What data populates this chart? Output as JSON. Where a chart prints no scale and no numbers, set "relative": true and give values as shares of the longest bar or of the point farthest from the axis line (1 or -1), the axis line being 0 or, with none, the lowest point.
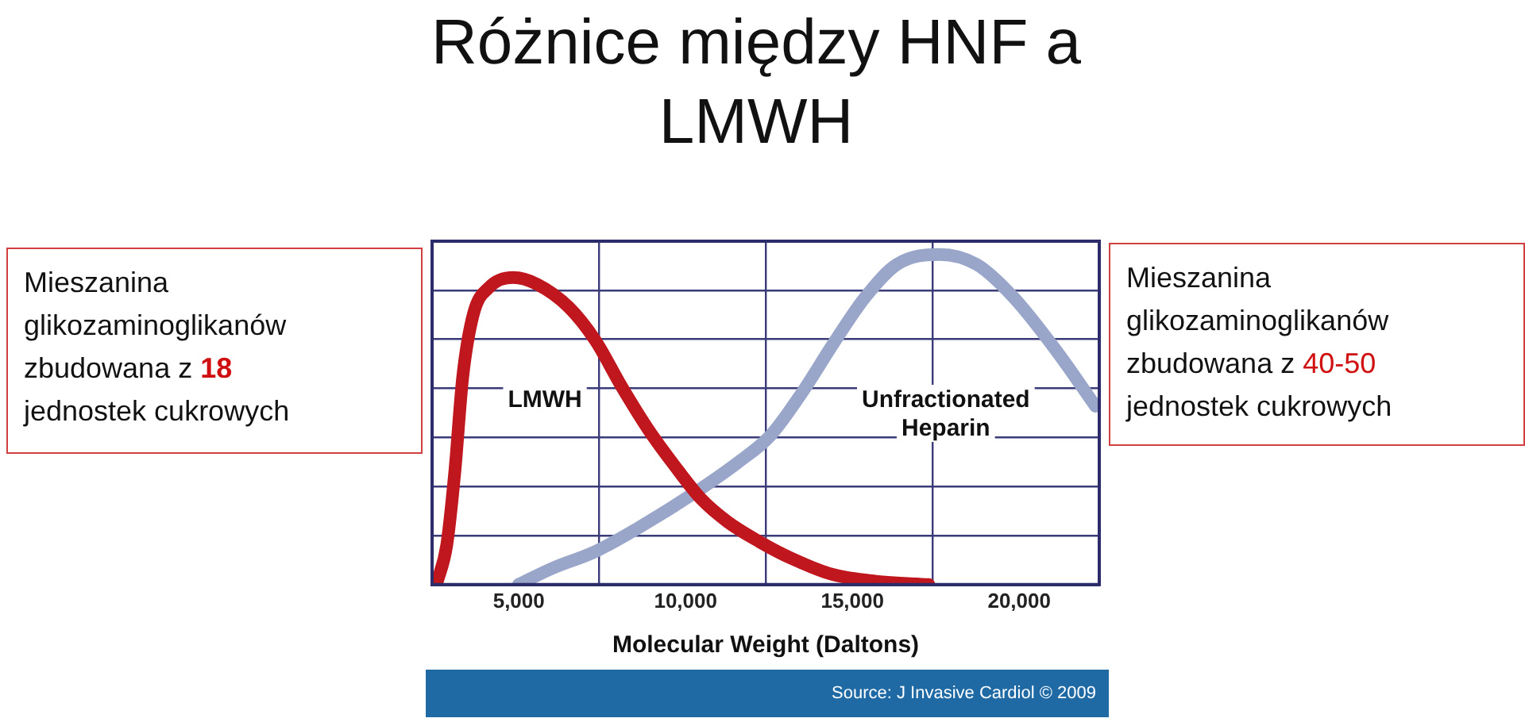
{
  "chart_data": {
    "type": "line",
    "title": "Różnice między HNF a LMWH",
    "xlabel": "Molecular Weight (Daltons)",
    "relative": true,
    "grid": true,
    "legend": false,
    "marker": "none",
    "line_style": "solid",
    "xlim": [
      2400,
      22400
    ],
    "xticks": [
      {
        "value": 5000,
        "label": "5,000"
      },
      {
        "value": 7400,
        "label": null
      },
      {
        "value": 10000,
        "label": "10,000"
      },
      {
        "value": 12400,
        "label": null
      },
      {
        "value": 15000,
        "label": "15,000"
      },
      {
        "value": 17400,
        "label": null
      },
      {
        "value": 20000,
        "label": "20,000"
      }
    ],
    "series": [
      {
        "name": "LMWH",
        "color": "#c0161e",
        "x": [
          2530,
          2840,
          3080,
          3320,
          3640,
          4110,
          4830,
          5540,
          6500,
          7290,
          8080,
          8880,
          9670,
          10460,
          11260,
          12210,
          13160,
          14430,
          15700,
          17290
        ],
        "values": [
          0,
          0.12,
          0.34,
          0.63,
          0.82,
          0.9,
          0.93,
          0.91,
          0.84,
          0.74,
          0.6,
          0.47,
          0.36,
          0.26,
          0.19,
          0.13,
          0.08,
          0.03,
          0.01,
          0
        ]
      },
      {
        "name": "Unfractionated Heparin",
        "color": "#99a6c9",
        "x": [
          4990,
          6020,
          7290,
          8720,
          10300,
          11570,
          12530,
          13480,
          14430,
          15380,
          16340,
          17610,
          18720,
          19830,
          21100,
          22290
        ],
        "values": [
          0,
          0.05,
          0.1,
          0.18,
          0.28,
          0.37,
          0.45,
          0.58,
          0.73,
          0.87,
          0.97,
          1,
          0.97,
          0.87,
          0.71,
          0.54
        ]
      }
    ],
    "annotations": [
      "Mieszanina glikozaminoglikanów zbudowana z 18 jednostek cukrowych",
      "Mieszanina glikozaminoglikanów zbudowana z 40-50 jednostek cukrowych",
      "Source: J Invasive Cardiol © 2009"
    ]
  }
}
